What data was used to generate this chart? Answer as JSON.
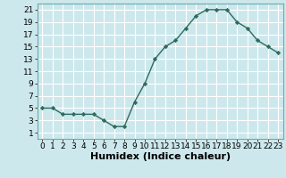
{
  "x": [
    0,
    1,
    2,
    3,
    4,
    5,
    6,
    7,
    8,
    9,
    10,
    11,
    12,
    13,
    14,
    15,
    16,
    17,
    18,
    19,
    20,
    21,
    22,
    23
  ],
  "y": [
    5,
    5,
    4,
    4,
    4,
    4,
    3,
    2,
    2,
    6,
    9,
    13,
    15,
    16,
    18,
    20,
    21,
    21,
    21,
    19,
    18,
    16,
    15,
    14
  ],
  "xlabel": "Humidex (Indice chaleur)",
  "xlim_min": -0.5,
  "xlim_max": 23.5,
  "ylim_min": 0,
  "ylim_max": 22,
  "yticks": [
    1,
    3,
    5,
    7,
    9,
    11,
    13,
    15,
    17,
    19,
    21
  ],
  "xticks": [
    0,
    1,
    2,
    3,
    4,
    5,
    6,
    7,
    8,
    9,
    10,
    11,
    12,
    13,
    14,
    15,
    16,
    17,
    18,
    19,
    20,
    21,
    22,
    23
  ],
  "line_color": "#2e6b5e",
  "marker": "D",
  "marker_size": 2.2,
  "bg_color": "#cce8ec",
  "grid_color": "#ffffff",
  "spine_color": "#6aacaa",
  "xlabel_fontsize": 8,
  "tick_fontsize": 6.5,
  "linewidth": 1.0
}
